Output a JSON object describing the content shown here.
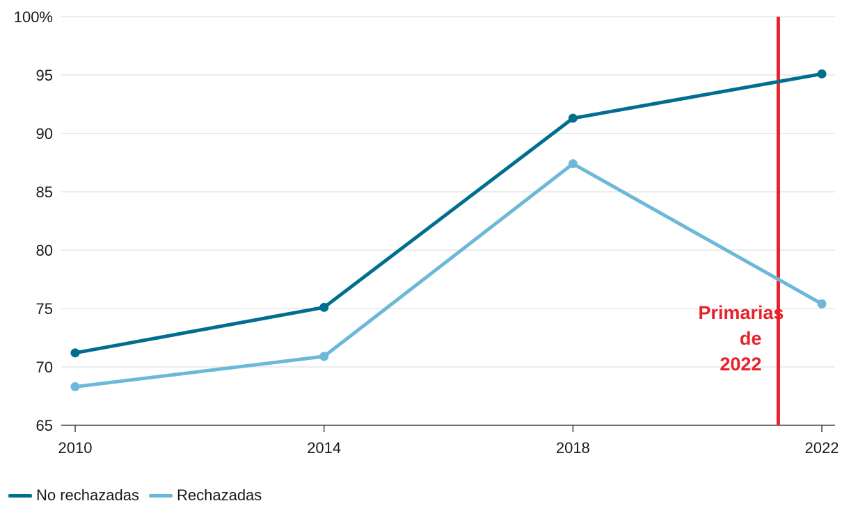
{
  "chart_data": {
    "type": "line",
    "x": [
      2010,
      2014,
      2018,
      2022
    ],
    "xticks": [
      "2010",
      "2014",
      "2018",
      "2022"
    ],
    "yticks": [
      {
        "value": 65,
        "label": "65"
      },
      {
        "value": 70,
        "label": "70"
      },
      {
        "value": 75,
        "label": "75"
      },
      {
        "value": 80,
        "label": "80"
      },
      {
        "value": 85,
        "label": "85"
      },
      {
        "value": 90,
        "label": "90"
      },
      {
        "value": 95,
        "label": "95"
      },
      {
        "value": 100,
        "label": "100%"
      }
    ],
    "ylim": [
      65,
      100
    ],
    "xlim": [
      2010,
      2022
    ],
    "grid": true,
    "series": [
      {
        "name": "No rechazadas",
        "color": "#006e8f",
        "values": [
          71.2,
          75.1,
          91.3,
          95.1
        ]
      },
      {
        "name": "Rechazadas",
        "color": "#6cb8d8",
        "values": [
          68.3,
          70.9,
          87.4,
          75.4
        ]
      }
    ],
    "annotation": {
      "x": 2021.3,
      "color": "#e8202a",
      "lines": [
        "Primarias",
        "de",
        "2022"
      ]
    },
    "legend_position": "bottom-left"
  }
}
